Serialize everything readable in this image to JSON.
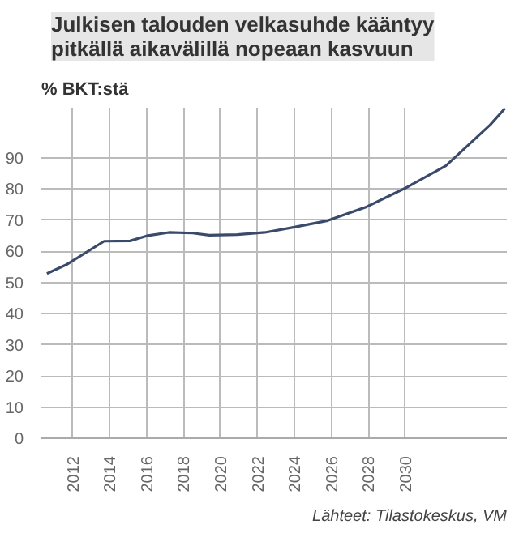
{
  "chart_data": {
    "type": "line",
    "title": "Julkisen talouden velkasuhde kääntyy pitkällä aikavälillä nopeaan kasvuun",
    "ylabel": "% BKT:stä",
    "annotations": [
      "Lähteet: Tilastokeskus, VM"
    ],
    "x": [
      2010.6,
      2011.7,
      2013.7,
      2015.1,
      2016,
      2017.2,
      2018.5,
      2019.4,
      2020.9,
      2022.4,
      2024,
      2025.8,
      2027.9,
      2030,
      2032.2,
      2034.6,
      2035.4
    ],
    "series": [
      {
        "color": "#3a4a6b",
        "values": [
          52.8,
          55.8,
          63.2,
          63.3,
          64.9,
          66,
          65.8,
          65.1,
          65.3,
          66,
          67.7,
          69.8,
          74.2,
          80.2,
          87.4,
          100.5,
          105.8
        ]
      }
    ],
    "xlim": [
      2010.3,
      2035.5
    ],
    "xticks": [
      2012,
      2014,
      2016,
      2018,
      2020,
      2022,
      2024,
      2026,
      2028,
      2030
    ],
    "ylim": [
      0,
      106
    ],
    "yticks": [
      0,
      10,
      20,
      30,
      40,
      50,
      60,
      70,
      80,
      90
    ],
    "grid": true,
    "marker": "none",
    "line_style": "solid"
  }
}
